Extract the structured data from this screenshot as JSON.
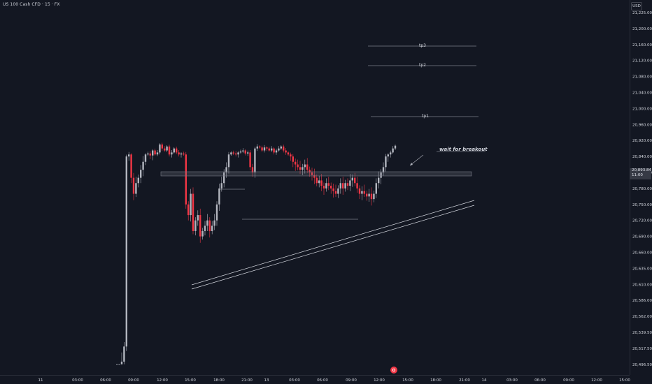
{
  "header": {
    "symbol": "US 100 Cash CFD · 15 · FX"
  },
  "price_axis": {
    "currency": "USD",
    "current_price": "20,893.84",
    "countdown": "11:00"
  },
  "annotations": {
    "tp1": "tp1",
    "tp2": "tp2",
    "tp3": "tp3",
    "note": "wait for breakout"
  },
  "colors": {
    "background": "#131722",
    "up": "#b2b5be",
    "down": "#f23645",
    "grid_text": "#d1d4dc",
    "lines": "#b2b5be"
  },
  "chart_data": {
    "type": "candlestick",
    "title": "US 100 Cash CFD · 15 · FX",
    "y_ticks": [
      "21,225.00",
      "21,200.00",
      "21,160.00",
      "21,120.00",
      "21,080.00",
      "21,040.00",
      "21,000.00",
      "20,960.00",
      "20,920.00",
      "20,840.00",
      "20,810.00",
      "20,780.00",
      "20,750.00",
      "20,720.00",
      "20,690.00",
      "20,660.00",
      "20,635.00",
      "20,610.00",
      "20,586.00",
      "20,562.00",
      "20,539.50",
      "20,517.50",
      "20,496.50"
    ],
    "x_ticks": [
      "11",
      "03:00",
      "06:00",
      "09:00",
      "12:00",
      "15:00",
      "18:00",
      "21:00",
      "13",
      "03:00",
      "06:00",
      "09:00",
      "12:00",
      "15:00",
      "18:00",
      "21:00",
      "14",
      "03:00",
      "06:00",
      "09:00",
      "12:00",
      "15:00"
    ],
    "levels": {
      "tp1": 21010,
      "tp2": 21115,
      "tp3": 21155,
      "resistance_top": 20900,
      "resistance_bottom": 20890
    },
    "close_series": [
      20480,
      20485,
      20500,
      20520,
      20840,
      20850,
      20800,
      20770,
      20790,
      20800,
      20815,
      20830,
      20850,
      20855,
      20845,
      20870,
      20850,
      20860,
      20900,
      20880,
      20870,
      20890,
      20850,
      20860,
      20880,
      20860,
      20850,
      20855,
      20850,
      20750,
      20730,
      20770,
      20700,
      20720,
      20730,
      20690,
      20700,
      20710,
      20720,
      20700,
      20710,
      20720,
      20750,
      20780,
      20790,
      20810,
      20820,
      20850,
      20860,
      20855,
      20850,
      20860,
      20865,
      20870,
      20855,
      20860,
      20820,
      20810,
      20880,
      20890,
      20885,
      20870,
      20885,
      20880,
      20870,
      20880,
      20860,
      20870,
      20880,
      20890,
      20870,
      20860,
      20850,
      20840,
      20830,
      20825,
      20820,
      20815,
      20820,
      20825,
      20815,
      20810,
      20805,
      20800,
      20790,
      20795,
      20785,
      20780,
      20790,
      20785,
      20780,
      20775,
      20770,
      20780,
      20790,
      20780,
      20790,
      20785,
      20795,
      20800,
      20790,
      20780,
      20770,
      20775,
      20770,
      20765,
      20770,
      20760,
      20770,
      20790,
      20800,
      20810,
      20820,
      20840,
      20850,
      20860,
      20880,
      20893.84
    ]
  }
}
